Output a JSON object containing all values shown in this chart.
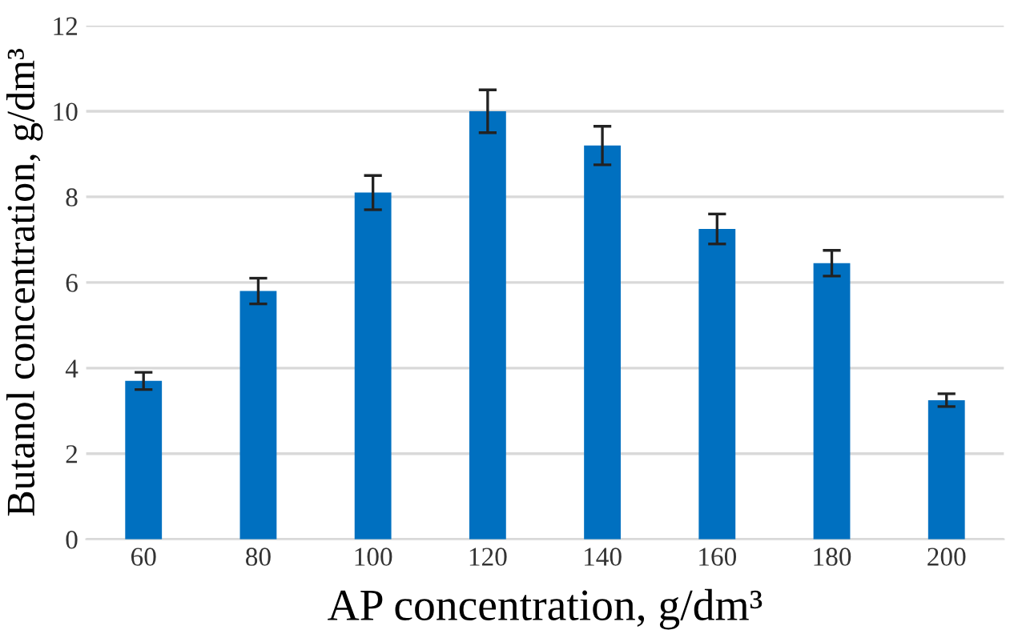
{
  "chart_data": {
    "type": "bar",
    "xlabel": "AP concentration, g/dm³",
    "ylabel": "Butanol concentration, g/dm³",
    "categories": [
      "60",
      "80",
      "100",
      "120",
      "140",
      "160",
      "180",
      "200"
    ],
    "values": [
      3.7,
      5.8,
      8.1,
      10.0,
      9.2,
      7.25,
      6.45,
      3.25
    ],
    "errors": [
      0.2,
      0.3,
      0.4,
      0.5,
      0.45,
      0.35,
      0.3,
      0.15
    ],
    "color": "#0070c0",
    "ylim": [
      0,
      12
    ],
    "yticks": [
      0,
      2,
      4,
      6,
      8,
      10,
      12
    ],
    "grid": "y"
  }
}
